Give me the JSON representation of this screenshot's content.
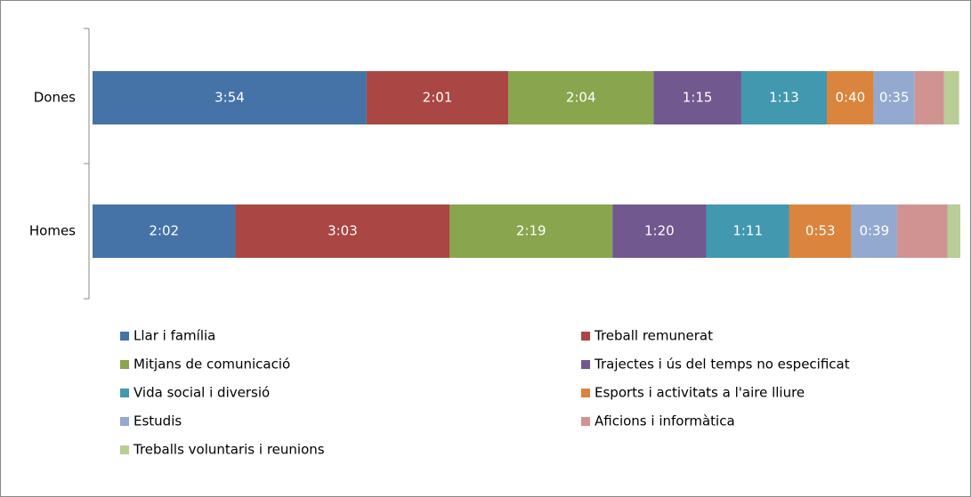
{
  "chart_data": {
    "type": "stacked_barh",
    "categories": [
      "Dones",
      "Homes"
    ],
    "series": [
      {
        "name": "Llar i família",
        "color": "#4572a7",
        "values": [
          234,
          122
        ],
        "value_labels": [
          "3:54",
          "2:02"
        ]
      },
      {
        "name": "Treball remunerat",
        "color": "#aa4643",
        "values": [
          121,
          183
        ],
        "value_labels": [
          "2:01",
          "3:03"
        ]
      },
      {
        "name": "Mitjans de comunicació",
        "color": "#89a54e",
        "values": [
          124,
          139
        ],
        "value_labels": [
          "2:04",
          "2:19"
        ]
      },
      {
        "name": "Trajectes i ús del temps no especificat",
        "color": "#71588f",
        "values": [
          75,
          80
        ],
        "value_labels": [
          "1:15",
          "1:20"
        ]
      },
      {
        "name": "Vida social i diversió",
        "color": "#4198af",
        "values": [
          73,
          71
        ],
        "value_labels": [
          "1:13",
          "1:11"
        ]
      },
      {
        "name": "Esports i activitats a l'aire lliure",
        "color": "#db843d",
        "values": [
          40,
          53
        ],
        "value_labels": [
          "0:40",
          "0:53"
        ]
      },
      {
        "name": "Estudis",
        "color": "#93a9cf",
        "values": [
          35,
          39
        ],
        "value_labels": [
          "0:35",
          "0:39"
        ]
      },
      {
        "name": "Aficions i informàtica",
        "color": "#d19392",
        "values": [
          25,
          43
        ],
        "value_labels": [
          null,
          null
        ]
      },
      {
        "name": "Treballs voluntaris i reunions",
        "color": "#b9cd96",
        "values": [
          13,
          11
        ],
        "value_labels": [
          null,
          null
        ]
      }
    ]
  }
}
